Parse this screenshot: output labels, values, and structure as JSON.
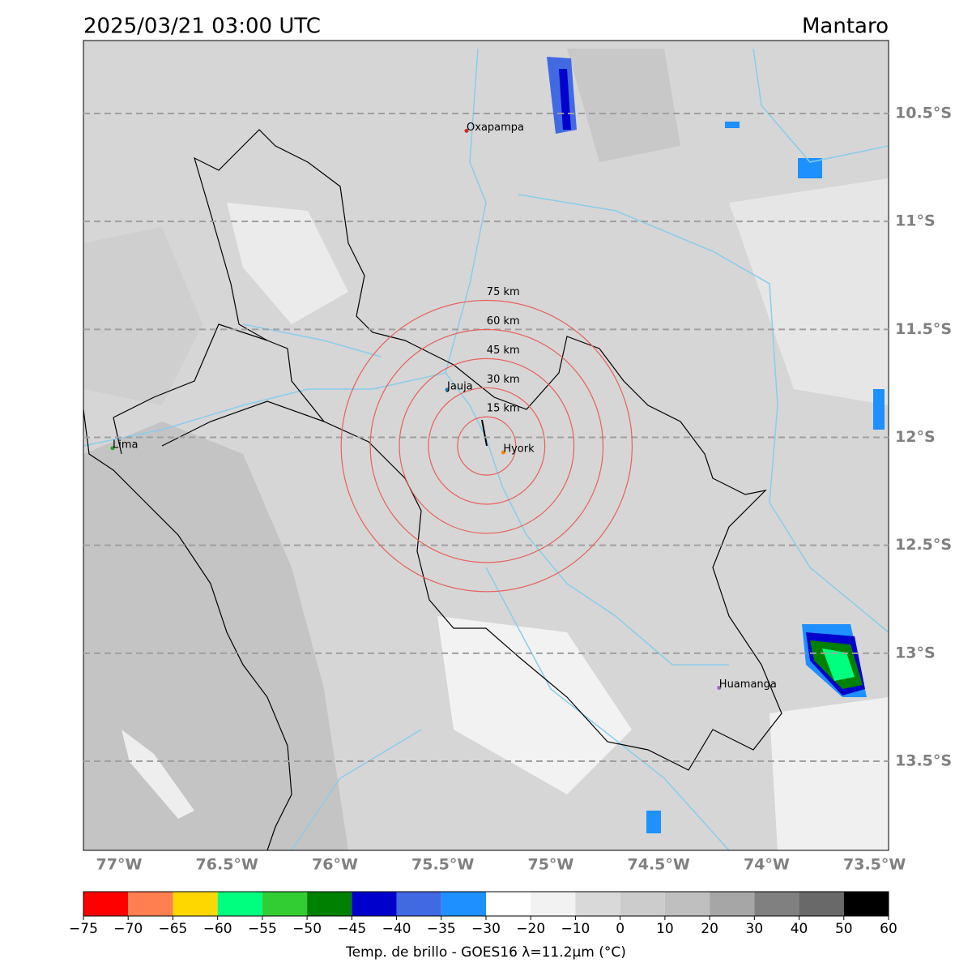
{
  "map": {
    "title": "2025/03/21 03:00 UTC",
    "region": "Mantaro",
    "lonlim": [
      -77.165,
      -73.435
    ],
    "latlim": [
      -13.913,
      -10.162
    ],
    "lon_ticks": [
      {
        "value": -77,
        "label": "77°W"
      },
      {
        "value": -76.5,
        "label": "76.5°W"
      },
      {
        "value": -76,
        "label": "76°W"
      },
      {
        "value": -75.5,
        "label": "75.5°W"
      },
      {
        "value": -75,
        "label": "75°W"
      },
      {
        "value": -74.5,
        "label": "74.5°W"
      },
      {
        "value": -74,
        "label": "74°W"
      },
      {
        "value": -73.5,
        "label": "73.5°W"
      }
    ],
    "lat_ticks": [
      {
        "value": -10.5,
        "label": "10.5°S"
      },
      {
        "value": -11,
        "label": "11°S"
      },
      {
        "value": -11.5,
        "label": "11.5°S"
      },
      {
        "value": -12,
        "label": "12°S"
      },
      {
        "value": -12.5,
        "label": "12.5°S"
      },
      {
        "value": -13,
        "label": "13°S"
      },
      {
        "value": -13.5,
        "label": "13.5°S"
      }
    ],
    "grid": true,
    "cities": [
      {
        "name": "Oxapampa",
        "lon": -75.39,
        "lat": -10.58,
        "color": "#d62728"
      },
      {
        "name": "Jauja",
        "lon": -75.48,
        "lat": -11.78,
        "color": "#1f77b4"
      },
      {
        "name": "Lima",
        "lon": -77.03,
        "lat": -12.05,
        "color": "#2ca02c"
      },
      {
        "name": "Hyork",
        "lon": -75.22,
        "lat": -12.07,
        "color": "#ff7f0e"
      },
      {
        "name": "Huamanga",
        "lon": -74.22,
        "lat": -13.16,
        "color": "#9467bd"
      }
    ],
    "rings": {
      "center": {
        "lon": -75.297,
        "lat": -12.04
      },
      "color": "#e8605c",
      "items": [
        {
          "radius_km": 15,
          "label": "15 km"
        },
        {
          "radius_km": 30,
          "label": "30 km"
        },
        {
          "radius_km": 45,
          "label": "45 km"
        },
        {
          "radius_km": 60,
          "label": "60 km"
        },
        {
          "radius_km": 75,
          "label": "75 km"
        }
      ]
    },
    "colorbar": {
      "label": "Temp. de brillo - GOES16 λ=11.2μm (°C)",
      "ticks": [
        {
          "value": -75,
          "label": "−75"
        },
        {
          "value": -70,
          "label": "−70"
        },
        {
          "value": -65,
          "label": "−65"
        },
        {
          "value": -60,
          "label": "−60"
        },
        {
          "value": -55,
          "label": "−55"
        },
        {
          "value": -50,
          "label": "−50"
        },
        {
          "value": -45,
          "label": "−45"
        },
        {
          "value": -40,
          "label": "−40"
        },
        {
          "value": -35,
          "label": "−35"
        },
        {
          "value": -30,
          "label": "−30"
        },
        {
          "value": -20,
          "label": "−20"
        },
        {
          "value": -10,
          "label": "−10"
        },
        0,
        10,
        20,
        30,
        40,
        50,
        60
      ],
      "colors": [
        "#ff0000",
        "#ff7f50",
        "#ffd700",
        "#00ff7f",
        "#32cd32",
        "#008000",
        "#0000cd",
        "#4169e1",
        "#1e90ff",
        "#ffffff",
        "#f2f2f2",
        "#d9d9d9",
        "#cccccc",
        "#bfbfbf",
        "#a6a6a6",
        "#808080",
        "#696969",
        "#000000"
      ]
    }
  }
}
